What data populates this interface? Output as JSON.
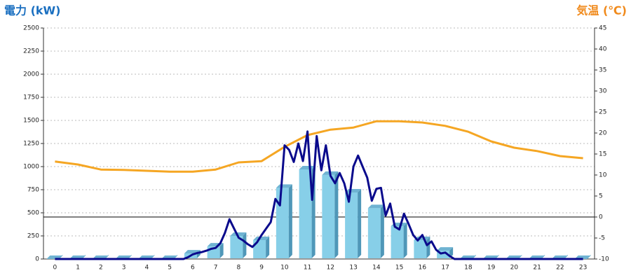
{
  "chart_data": {
    "type": "bar",
    "y_label": "電力 (kW)",
    "y2_label": "気温 (℃)",
    "categories": [
      "0",
      "1",
      "2",
      "3",
      "4",
      "5",
      "6",
      "7",
      "8",
      "9",
      "10",
      "11",
      "12",
      "13",
      "14",
      "15",
      "16",
      "17",
      "18",
      "19",
      "20",
      "21",
      "22",
      "23"
    ],
    "xlim": [
      -0.5,
      23.5
    ],
    "ylim": [
      0,
      2500
    ],
    "yticks": [
      0,
      250,
      500,
      750,
      1000,
      1250,
      1500,
      1750,
      2000,
      2250,
      2500
    ],
    "y2lim": [
      -10,
      45
    ],
    "y2ticks": [
      -10,
      -5,
      0,
      5,
      10,
      15,
      20,
      25,
      30,
      35,
      40,
      45
    ],
    "grid": true,
    "series": [
      {
        "type": "bar",
        "color": "#87cfe8",
        "values": [
          0,
          0,
          0,
          0,
          0,
          0,
          60,
          135,
          250,
          205,
          770,
          970,
          910,
          720,
          550,
          355,
          205,
          90,
          0,
          0,
          0,
          0,
          0,
          0
        ]
      },
      {
        "type": "line",
        "color": "#0a0a8c",
        "x": [
          0,
          1,
          2,
          3,
          4,
          5,
          5.6,
          5.8,
          6,
          6.2,
          6.4,
          6.6,
          6.8,
          7,
          7.2,
          7.4,
          7.6,
          7.8,
          8,
          8.2,
          8.4,
          8.6,
          8.8,
          9,
          9.2,
          9.4,
          9.6,
          9.8,
          10,
          10.2,
          10.4,
          10.6,
          10.8,
          11,
          11.2,
          11.4,
          11.6,
          11.8,
          12,
          12.2,
          12.4,
          12.6,
          12.8,
          13,
          13.2,
          13.4,
          13.6,
          13.8,
          14,
          14.2,
          14.4,
          14.6,
          14.8,
          15,
          15.2,
          15.4,
          15.6,
          15.8,
          16,
          16.2,
          16.4,
          16.6,
          16.8,
          17,
          17.2,
          17.4,
          18,
          19,
          20,
          21,
          22,
          23
        ],
        "values": [
          0,
          0,
          0,
          0,
          0,
          0,
          0,
          20,
          50,
          65,
          75,
          90,
          110,
          120,
          170,
          280,
          430,
          330,
          230,
          200,
          160,
          130,
          180,
          260,
          330,
          400,
          650,
          580,
          1230,
          1180,
          1050,
          1250,
          1060,
          1380,
          640,
          1330,
          960,
          1230,
          900,
          820,
          930,
          820,
          620,
          1000,
          1120,
          1000,
          880,
          630,
          760,
          770,
          470,
          600,
          350,
          320,
          490,
          380,
          260,
          200,
          260,
          150,
          190,
          100,
          60,
          70,
          30,
          0,
          0,
          0,
          0,
          0,
          0,
          0
        ]
      },
      {
        "type": "line",
        "axis": "y2",
        "color": "#f5a623",
        "values": [
          13.2,
          12.5,
          11.3,
          11.2,
          11.0,
          10.8,
          10.8,
          11.3,
          13.0,
          13.3,
          16.7,
          19.5,
          20.8,
          21.3,
          22.8,
          22.8,
          22.5,
          21.7,
          20.3,
          18.0,
          16.5,
          15.7,
          14.5,
          14.0
        ]
      }
    ]
  }
}
